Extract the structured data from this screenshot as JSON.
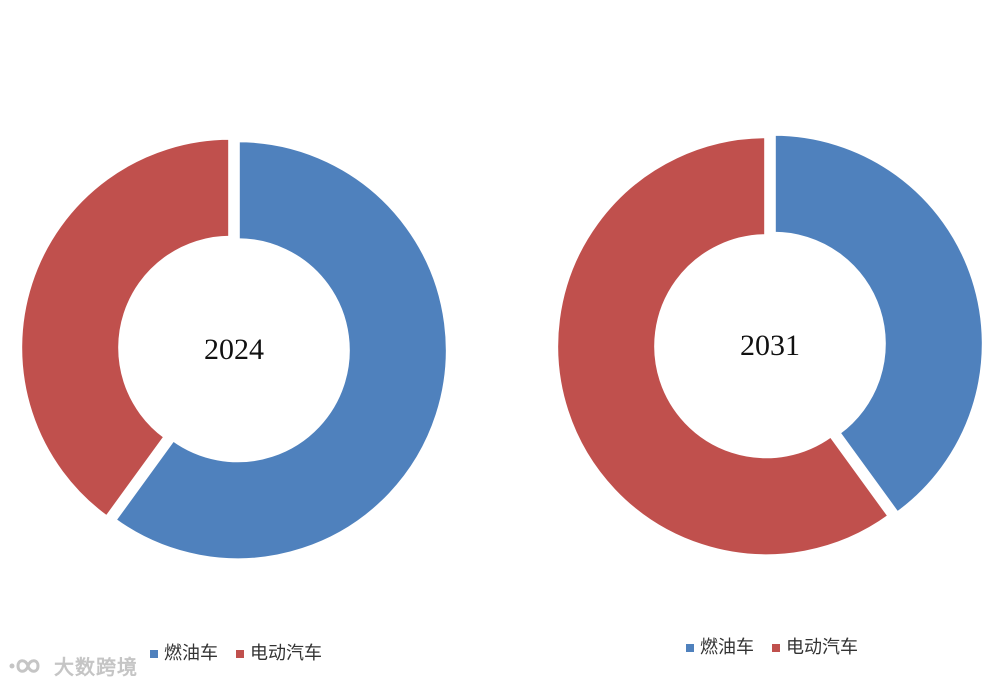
{
  "chart_data": [
    {
      "type": "donut",
      "center_label": "2024",
      "categories": [
        "燃油车",
        "电动汽车"
      ],
      "values": [
        60,
        40
      ],
      "colors": [
        "#4f81bd",
        "#c0504d"
      ],
      "legend": [
        "燃油车",
        "电动汽车"
      ],
      "legend_position": "bottom"
    },
    {
      "type": "donut",
      "center_label": "2031",
      "categories": [
        "燃油车",
        "电动汽车"
      ],
      "values": [
        40,
        60
      ],
      "colors": [
        "#4f81bd",
        "#c0504d"
      ],
      "legend": [
        "燃油车",
        "电动汽车"
      ],
      "legend_position": "bottom"
    }
  ],
  "watermark": {
    "text": "大数跨境",
    "icon": "infinity-logo-icon"
  }
}
